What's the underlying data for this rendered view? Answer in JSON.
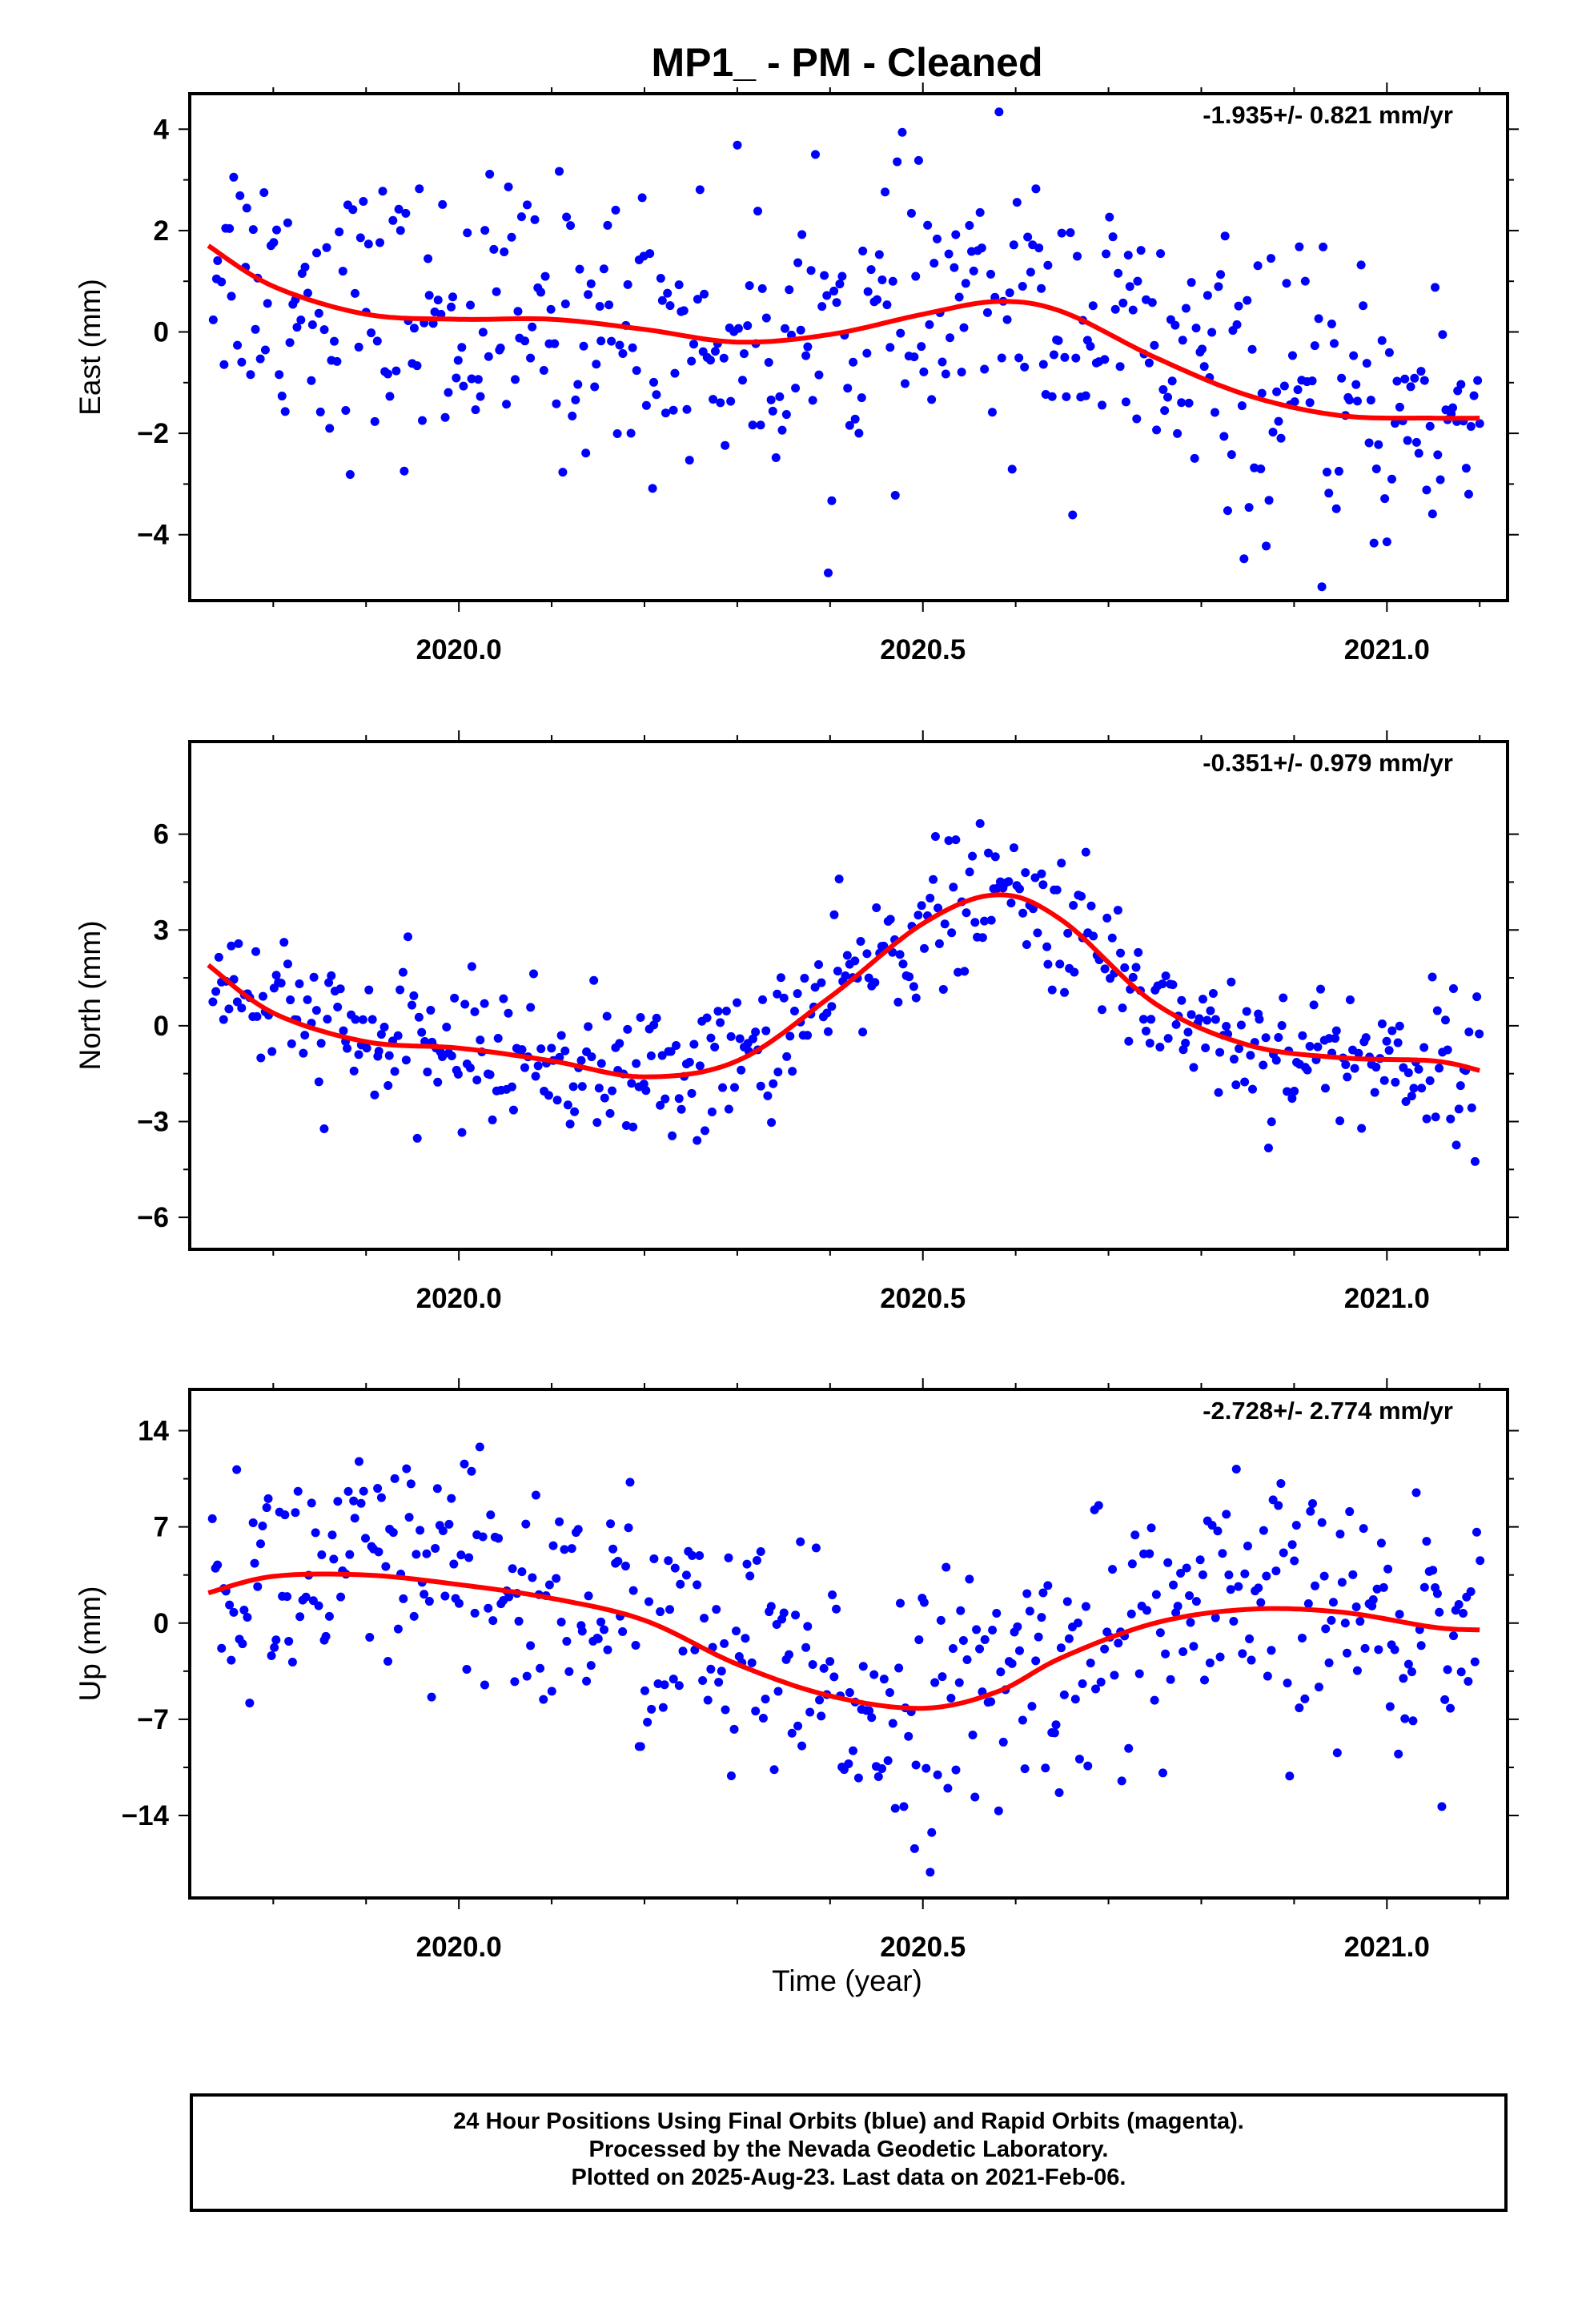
{
  "title": "MP1_  - PM - Cleaned",
  "xlabel": "Time (year)",
  "footer": {
    "line1": "24 Hour Positions Using Final Orbits (blue) and Rapid Orbits (magenta).",
    "line2": "Processed by the Nevada Geodetic Laboratory.",
    "line3": "Plotted on 2025-Aug-23. Last data on 2021-Feb-06."
  },
  "colors": {
    "points": "#0000ff",
    "trend": "#ff0000",
    "axes": "#000000"
  },
  "chart_data": [
    {
      "type": "scatter",
      "ylabel": "East (mm)",
      "rate_label": "-1.935+/- 0.821 mm/yr",
      "xlim": [
        2019.71,
        2021.13
      ],
      "ylim": [
        -5.3,
        4.7
      ],
      "xticks": [
        2020.0,
        2020.5,
        2021.0
      ],
      "xtick_labels": [
        "2020.0",
        "2020.5",
        "2021.0"
      ],
      "yticks": [
        -4,
        -2,
        0,
        2,
        4
      ],
      "ytick_labels": [
        "−4",
        "−2",
        "0",
        "2",
        "4"
      ],
      "fit_line": {
        "x": [
          2019.73,
          2019.8,
          2019.9,
          2020.0,
          2020.1,
          2020.2,
          2020.3,
          2020.4,
          2020.5,
          2020.58,
          2020.65,
          2020.75,
          2020.85,
          2020.95,
          2021.05,
          2021.1
        ],
        "y": [
          1.7,
          0.9,
          0.35,
          0.25,
          0.25,
          0.05,
          -0.2,
          -0.05,
          0.35,
          0.6,
          0.4,
          -0.5,
          -1.25,
          -1.65,
          -1.7,
          -1.7
        ]
      },
      "points_summary": {
        "count": 480,
        "spread": 1.35,
        "note": "daily positions scattered about the fit"
      }
    },
    {
      "type": "scatter",
      "ylabel": "North (mm)",
      "rate_label": "-0.351+/- 0.979 mm/yr",
      "xlim": [
        2019.71,
        2021.13
      ],
      "ylim": [
        -7.0,
        8.9
      ],
      "xticks": [
        2020.0,
        2020.5,
        2021.0
      ],
      "xtick_labels": [
        "2020.0",
        "2020.5",
        "2021.0"
      ],
      "yticks": [
        -6,
        -3,
        0,
        3,
        6
      ],
      "ytick_labels": [
        "−6",
        "−3",
        "0",
        "3",
        "6"
      ],
      "fit_line": {
        "x": [
          2019.73,
          2019.8,
          2019.9,
          2020.0,
          2020.1,
          2020.2,
          2020.3,
          2020.4,
          2020.5,
          2020.58,
          2020.65,
          2020.75,
          2020.85,
          2020.95,
          2021.05,
          2021.1
        ],
        "y": [
          1.9,
          0.4,
          -0.5,
          -0.7,
          -1.1,
          -1.6,
          -1.1,
          0.9,
          3.2,
          4.1,
          3.3,
          0.7,
          -0.6,
          -1.0,
          -1.1,
          -1.4
        ]
      },
      "points_summary": {
        "count": 480,
        "spread": 1.1,
        "note": "daily positions scattered about the fit"
      }
    },
    {
      "type": "scatter",
      "ylabel": "Up (mm)",
      "rate_label": "-2.728+/- 2.774 mm/yr",
      "xlim": [
        2019.71,
        2021.13
      ],
      "ylim": [
        -20.0,
        17.0
      ],
      "xticks": [
        2020.0,
        2020.5,
        2021.0
      ],
      "xtick_labels": [
        "2020.0",
        "2020.5",
        "2021.0"
      ],
      "yticks": [
        -14,
        -7,
        0,
        7,
        14
      ],
      "ytick_labels": [
        "−14",
        "−7",
        "0",
        "7",
        "14"
      ],
      "fit_line": {
        "x": [
          2019.73,
          2019.8,
          2019.9,
          2020.0,
          2020.1,
          2020.2,
          2020.3,
          2020.4,
          2020.5,
          2020.58,
          2020.65,
          2020.75,
          2020.85,
          2020.95,
          2021.05,
          2021.1
        ],
        "y": [
          2.2,
          3.4,
          3.5,
          2.8,
          1.8,
          0.2,
          -3.0,
          -5.3,
          -6.2,
          -5.0,
          -2.5,
          0.0,
          1.0,
          0.8,
          -0.3,
          -0.5
        ]
      },
      "points_summary": {
        "count": 480,
        "spread": 4.6,
        "note": "daily positions scattered about the fit"
      }
    }
  ]
}
